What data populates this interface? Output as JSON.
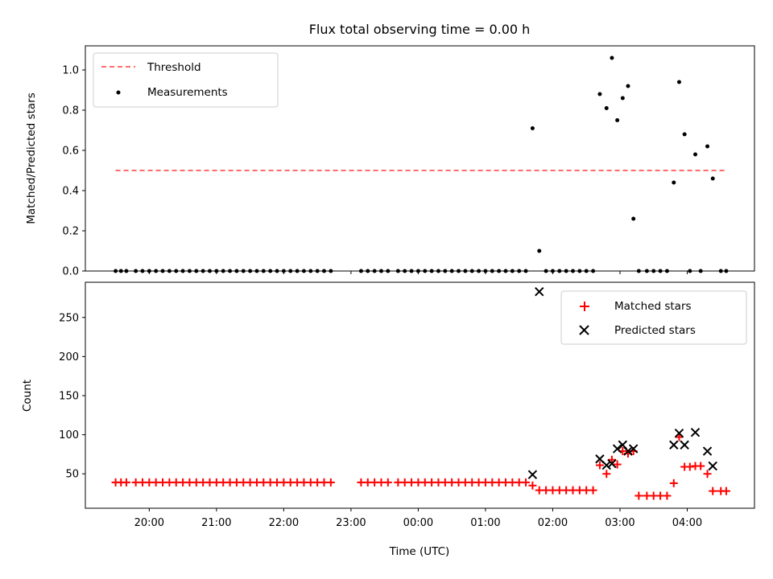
{
  "chart_data": [
    {
      "type": "scatter",
      "title": "Flux total observing time = 0.00 h",
      "xlabel": "",
      "ylabel": "Matched/Predicted stars",
      "ylim": [
        0,
        1.12
      ],
      "yticks": [
        "0.0",
        "0.2",
        "0.4",
        "0.6",
        "0.8",
        "1.0"
      ],
      "xlim_hours": [
        19.05,
        29.0
      ],
      "legend_position": "top-left",
      "threshold": {
        "name": "Threshold",
        "value": 0.5,
        "x_range": [
          19.5,
          28.6
        ],
        "color": "#ff6b6b"
      },
      "series": [
        {
          "name": "Measurements",
          "color": "#000000",
          "points": [
            [
              19.5,
              0
            ],
            [
              19.58,
              0
            ],
            [
              19.66,
              0
            ],
            [
              19.8,
              0
            ],
            [
              19.9,
              0
            ],
            [
              20.0,
              0
            ],
            [
              20.1,
              0
            ],
            [
              20.2,
              0
            ],
            [
              20.3,
              0
            ],
            [
              20.4,
              0
            ],
            [
              20.5,
              0
            ],
            [
              20.6,
              0
            ],
            [
              20.7,
              0
            ],
            [
              20.8,
              0
            ],
            [
              20.9,
              0
            ],
            [
              21.0,
              0
            ],
            [
              21.1,
              0
            ],
            [
              21.2,
              0
            ],
            [
              21.3,
              0
            ],
            [
              21.4,
              0
            ],
            [
              21.5,
              0
            ],
            [
              21.6,
              0
            ],
            [
              21.7,
              0
            ],
            [
              21.8,
              0
            ],
            [
              21.9,
              0
            ],
            [
              22.0,
              0
            ],
            [
              22.1,
              0
            ],
            [
              22.2,
              0
            ],
            [
              22.3,
              0
            ],
            [
              22.4,
              0
            ],
            [
              22.5,
              0
            ],
            [
              22.6,
              0
            ],
            [
              22.7,
              0
            ],
            [
              23.15,
              0
            ],
            [
              23.25,
              0
            ],
            [
              23.35,
              0
            ],
            [
              23.45,
              0
            ],
            [
              23.55,
              0
            ],
            [
              23.7,
              0
            ],
            [
              23.8,
              0
            ],
            [
              23.9,
              0
            ],
            [
              24.0,
              0
            ],
            [
              24.1,
              0
            ],
            [
              24.2,
              0
            ],
            [
              24.3,
              0
            ],
            [
              24.4,
              0
            ],
            [
              24.5,
              0
            ],
            [
              24.6,
              0
            ],
            [
              24.7,
              0
            ],
            [
              24.8,
              0
            ],
            [
              24.9,
              0
            ],
            [
              25.0,
              0
            ],
            [
              25.1,
              0
            ],
            [
              25.2,
              0
            ],
            [
              25.3,
              0
            ],
            [
              25.4,
              0
            ],
            [
              25.5,
              0
            ],
            [
              25.6,
              0
            ],
            [
              25.7,
              0.71
            ],
            [
              25.8,
              0.1
            ],
            [
              25.9,
              0
            ],
            [
              26.0,
              0
            ],
            [
              26.1,
              0
            ],
            [
              26.2,
              0
            ],
            [
              26.3,
              0
            ],
            [
              26.4,
              0
            ],
            [
              26.5,
              0
            ],
            [
              26.6,
              0
            ],
            [
              26.7,
              0.88
            ],
            [
              26.8,
              0.81
            ],
            [
              26.88,
              1.06
            ],
            [
              26.96,
              0.75
            ],
            [
              27.04,
              0.86
            ],
            [
              27.12,
              0.92
            ],
            [
              27.2,
              0.26
            ],
            [
              27.28,
              0
            ],
            [
              27.4,
              0
            ],
            [
              27.5,
              0
            ],
            [
              27.6,
              0
            ],
            [
              27.7,
              0
            ],
            [
              27.8,
              0.44
            ],
            [
              27.88,
              0.94
            ],
            [
              27.96,
              0.68
            ],
            [
              28.04,
              0
            ],
            [
              28.12,
              0.58
            ],
            [
              28.2,
              0
            ],
            [
              28.3,
              0.62
            ],
            [
              28.38,
              0.46
            ],
            [
              28.5,
              0
            ],
            [
              28.58,
              0
            ]
          ]
        }
      ]
    },
    {
      "type": "scatter",
      "title": "",
      "xlabel": "Time (UTC)",
      "ylabel": "Count",
      "ylim": [
        6,
        295
      ],
      "yticks": [
        "50",
        "100",
        "150",
        "200",
        "250"
      ],
      "xlim_hours": [
        19.05,
        29.0
      ],
      "xticks": [
        "20:00",
        "21:00",
        "22:00",
        "23:00",
        "00:00",
        "01:00",
        "02:00",
        "03:00",
        "04:00"
      ],
      "legend_position": "top-right",
      "series": [
        {
          "name": "Matched stars",
          "marker": "plus",
          "color": "#ff0000",
          "points": [
            [
              19.5,
              39
            ],
            [
              19.58,
              39
            ],
            [
              19.66,
              39
            ],
            [
              19.8,
              39
            ],
            [
              19.9,
              39
            ],
            [
              20.0,
              39
            ],
            [
              20.1,
              39
            ],
            [
              20.2,
              39
            ],
            [
              20.3,
              39
            ],
            [
              20.4,
              39
            ],
            [
              20.5,
              39
            ],
            [
              20.6,
              39
            ],
            [
              20.7,
              39
            ],
            [
              20.8,
              39
            ],
            [
              20.9,
              39
            ],
            [
              21.0,
              39
            ],
            [
              21.1,
              39
            ],
            [
              21.2,
              39
            ],
            [
              21.3,
              39
            ],
            [
              21.4,
              39
            ],
            [
              21.5,
              39
            ],
            [
              21.6,
              39
            ],
            [
              21.7,
              39
            ],
            [
              21.8,
              39
            ],
            [
              21.9,
              39
            ],
            [
              22.0,
              39
            ],
            [
              22.1,
              39
            ],
            [
              22.2,
              39
            ],
            [
              22.3,
              39
            ],
            [
              22.4,
              39
            ],
            [
              22.5,
              39
            ],
            [
              22.6,
              39
            ],
            [
              22.7,
              39
            ],
            [
              23.15,
              39
            ],
            [
              23.25,
              39
            ],
            [
              23.35,
              39
            ],
            [
              23.45,
              39
            ],
            [
              23.55,
              39
            ],
            [
              23.7,
              39
            ],
            [
              23.8,
              39
            ],
            [
              23.9,
              39
            ],
            [
              24.0,
              39
            ],
            [
              24.1,
              39
            ],
            [
              24.2,
              39
            ],
            [
              24.3,
              39
            ],
            [
              24.4,
              39
            ],
            [
              24.5,
              39
            ],
            [
              24.6,
              39
            ],
            [
              24.7,
              39
            ],
            [
              24.8,
              39
            ],
            [
              24.9,
              39
            ],
            [
              25.0,
              39
            ],
            [
              25.1,
              39
            ],
            [
              25.2,
              39
            ],
            [
              25.3,
              39
            ],
            [
              25.4,
              39
            ],
            [
              25.5,
              39
            ],
            [
              25.6,
              39
            ],
            [
              25.7,
              35
            ],
            [
              25.8,
              29
            ],
            [
              25.9,
              29
            ],
            [
              26.0,
              29
            ],
            [
              26.1,
              29
            ],
            [
              26.2,
              29
            ],
            [
              26.3,
              29
            ],
            [
              26.4,
              29
            ],
            [
              26.5,
              29
            ],
            [
              26.6,
              29
            ],
            [
              26.7,
              61
            ],
            [
              26.8,
              50
            ],
            [
              26.88,
              68
            ],
            [
              26.96,
              62
            ],
            [
              27.04,
              79
            ],
            [
              27.12,
              76
            ],
            [
              27.2,
              79
            ],
            [
              27.28,
              22
            ],
            [
              27.4,
              22
            ],
            [
              27.5,
              22
            ],
            [
              27.6,
              22
            ],
            [
              27.7,
              22
            ],
            [
              27.8,
              38
            ],
            [
              27.88,
              97
            ],
            [
              27.96,
              59
            ],
            [
              28.04,
              59
            ],
            [
              28.12,
              60
            ],
            [
              28.2,
              60
            ],
            [
              28.3,
              50
            ],
            [
              28.38,
              28
            ],
            [
              28.5,
              28
            ],
            [
              28.58,
              28
            ]
          ]
        },
        {
          "name": "Predicted stars",
          "marker": "x",
          "color": "#000000",
          "points": [
            [
              25.7,
              49
            ],
            [
              25.8,
              283
            ],
            [
              26.7,
              69
            ],
            [
              26.8,
              61
            ],
            [
              26.88,
              63
            ],
            [
              26.96,
              82
            ],
            [
              27.04,
              87
            ],
            [
              27.12,
              79
            ],
            [
              27.2,
              82
            ],
            [
              27.8,
              87
            ],
            [
              27.88,
              102
            ],
            [
              27.96,
              87
            ],
            [
              28.12,
              103
            ],
            [
              28.3,
              79
            ],
            [
              28.38,
              60
            ]
          ]
        }
      ]
    }
  ]
}
